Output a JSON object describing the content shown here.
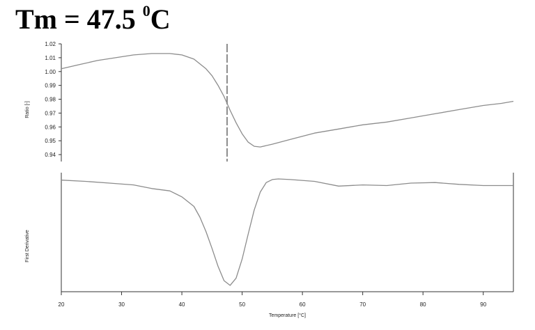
{
  "headline": {
    "prefix": "Tm = 47.5 ",
    "superscript": "0",
    "suffix": "C"
  },
  "chart_data": [
    {
      "type": "line",
      "panel": "top",
      "ylabel": "Ratio [-]",
      "xlim": [
        20,
        95
      ],
      "ylim": [
        0.935,
        1.02
      ],
      "yticks": [
        0.94,
        0.95,
        0.96,
        0.97,
        0.98,
        0.99,
        1.0,
        1.01,
        1.02
      ],
      "ytick_labels": [
        "0.94",
        "0.95",
        "0.96",
        "0.97",
        "0.98",
        "0.99",
        "1.00",
        "1.01",
        "1.02"
      ],
      "series": [
        {
          "color": "#8c8c8c",
          "x": [
            20,
            23,
            26,
            29,
            32,
            35,
            38,
            40,
            42,
            44,
            45,
            46,
            47,
            48,
            49,
            50,
            51,
            52,
            53,
            55,
            58,
            62,
            66,
            70,
            74,
            78,
            82,
            86,
            90,
            93,
            95
          ],
          "y": [
            1.002,
            1.005,
            1.008,
            1.01,
            1.012,
            1.013,
            1.013,
            1.012,
            1.009,
            1.002,
            0.997,
            0.99,
            0.982,
            0.972,
            0.963,
            0.955,
            0.949,
            0.946,
            0.9455,
            0.9475,
            0.951,
            0.9555,
            0.9585,
            0.9615,
            0.9635,
            0.9665,
            0.9695,
            0.9725,
            0.9755,
            0.977,
            0.9785
          ]
        }
      ],
      "marker_line": {
        "x": 47.5,
        "style": "dashed",
        "color": "#8c8c8c"
      }
    },
    {
      "type": "line",
      "panel": "bottom",
      "xlabel": "Temperature [°C]",
      "ylabel": "First Derivative",
      "xlim": [
        20,
        95
      ],
      "xticks": [
        20,
        30,
        40,
        50,
        60,
        70,
        80,
        90
      ],
      "ytick_labels": [],
      "series": [
        {
          "color": "#8c8c8c",
          "x": [
            20,
            24,
            28,
            32,
            35,
            38,
            40,
            42,
            43,
            44,
            45,
            46,
            47,
            48,
            49,
            50,
            51,
            52,
            53,
            54,
            55,
            56,
            58,
            62,
            66,
            70,
            74,
            78,
            82,
            86,
            90,
            95
          ],
          "y": [
            0,
            -0.01,
            -0.025,
            -0.04,
            -0.07,
            -0.09,
            -0.14,
            -0.22,
            -0.31,
            -0.43,
            -0.57,
            -0.72,
            -0.84,
            -0.88,
            -0.82,
            -0.66,
            -0.45,
            -0.25,
            -0.1,
            -0.02,
            0.005,
            0.01,
            0.005,
            -0.01,
            -0.05,
            -0.04,
            -0.045,
            -0.025,
            -0.02,
            -0.035,
            -0.045,
            -0.045
          ]
        }
      ]
    }
  ]
}
